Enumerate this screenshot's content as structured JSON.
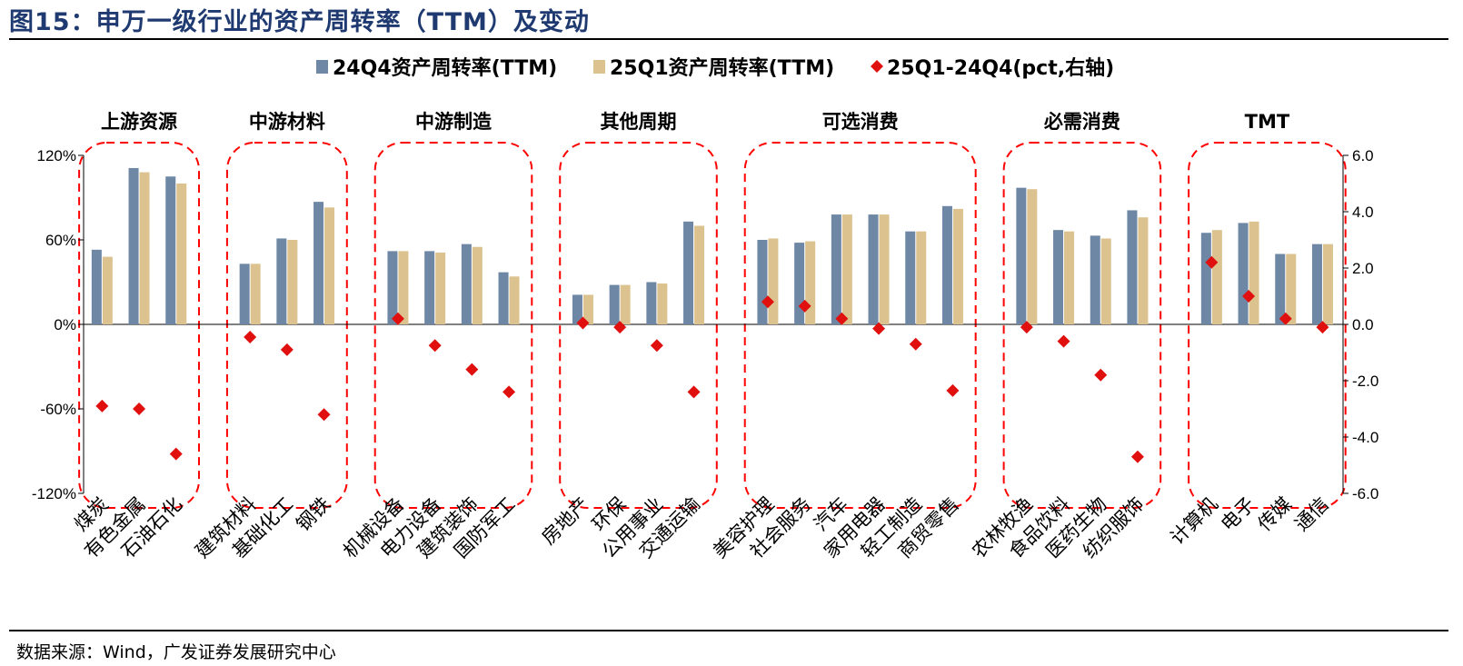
{
  "figure_title": "图15：申万一级行业的资产周转率（TTM）及变动",
  "source": "数据来源：Wind，广发证券发展研究中心",
  "colors": {
    "series1": "#6d87a5",
    "series2": "#dcc28f",
    "series3": "#e0100f",
    "group_box": "#ff0000",
    "title": "#1f3a70"
  },
  "chart_data": {
    "type": "bar",
    "categories": [
      "煤炭",
      "有色金属",
      "石油石化",
      "建筑材料",
      "基础化工",
      "钢铁",
      "机械设备",
      "电力设备",
      "建筑装饰",
      "国防军工",
      "房地产",
      "环保",
      "公用事业",
      "交通运输",
      "美容护理",
      "社会服务",
      "汽车",
      "家用电器",
      "轻工制造",
      "商贸零售",
      "农林牧渔",
      "食品饮料",
      "医药生物",
      "纺织服饰",
      "计算机",
      "电子",
      "传媒",
      "通信"
    ],
    "groups": [
      {
        "label": "上游资源",
        "members": [
          "煤炭",
          "有色金属",
          "石油石化"
        ]
      },
      {
        "label": "中游材料",
        "members": [
          "建筑材料",
          "基础化工",
          "钢铁"
        ]
      },
      {
        "label": "中游制造",
        "members": [
          "机械设备",
          "电力设备",
          "建筑装饰",
          "国防军工"
        ]
      },
      {
        "label": "其他周期",
        "members": [
          "房地产",
          "环保",
          "公用事业",
          "交通运输"
        ]
      },
      {
        "label": "可选消费",
        "members": [
          "美容护理",
          "社会服务",
          "汽车",
          "家用电器",
          "轻工制造",
          "商贸零售"
        ]
      },
      {
        "label": "必需消费",
        "members": [
          "农林牧渔",
          "食品饮料",
          "医药生物",
          "纺织服饰"
        ]
      },
      {
        "label": "TMT",
        "members": [
          "计算机",
          "电子",
          "传媒",
          "通信"
        ]
      }
    ],
    "series": [
      {
        "name": "24Q4资产周转率(TTM)",
        "axis": "left",
        "kind": "bar",
        "values": [
          53,
          111,
          105,
          43,
          61,
          87,
          52,
          52,
          57,
          37,
          21,
          28,
          30,
          73,
          60,
          58,
          78,
          78,
          66,
          84,
          97,
          67,
          63,
          81,
          65,
          72,
          50,
          57
        ]
      },
      {
        "name": "25Q1资产周转率(TTM)",
        "axis": "right_paired",
        "kind": "bar",
        "values": [
          48,
          108,
          100,
          43,
          60,
          83,
          52,
          51,
          55,
          34,
          21,
          28,
          29,
          70,
          61,
          59,
          78,
          78,
          66,
          82,
          96,
          66,
          61,
          76,
          67,
          73,
          50,
          57
        ]
      },
      {
        "name": "25Q1-24Q4(pct,右轴)",
        "axis": "right",
        "kind": "scatter",
        "values": [
          -2.9,
          -3.0,
          -4.6,
          -0.45,
          -0.9,
          -3.2,
          0.2,
          -0.75,
          -1.6,
          -2.4,
          0.05,
          -0.1,
          -0.75,
          -2.4,
          0.8,
          0.65,
          0.2,
          -0.15,
          -0.7,
          -2.35,
          -0.1,
          -0.6,
          -1.8,
          -4.7,
          2.2,
          1.0,
          0.2,
          -0.1
        ]
      }
    ],
    "y_left": {
      "min": -120,
      "max": 120,
      "ticks": [
        120,
        60,
        0,
        -60,
        -120
      ],
      "tick_labels": [
        "120%",
        "60%",
        "0%",
        "-60%",
        "-120%"
      ]
    },
    "y_right": {
      "min": -6,
      "max": 6,
      "ticks": [
        6,
        4,
        2,
        0,
        -2,
        -4,
        -6
      ],
      "tick_labels": [
        "6.0",
        "4.0",
        "2.0",
        "0.0",
        "-2.0",
        "-4.0",
        "-6.0"
      ]
    },
    "legend_position": "top",
    "grid": false
  }
}
